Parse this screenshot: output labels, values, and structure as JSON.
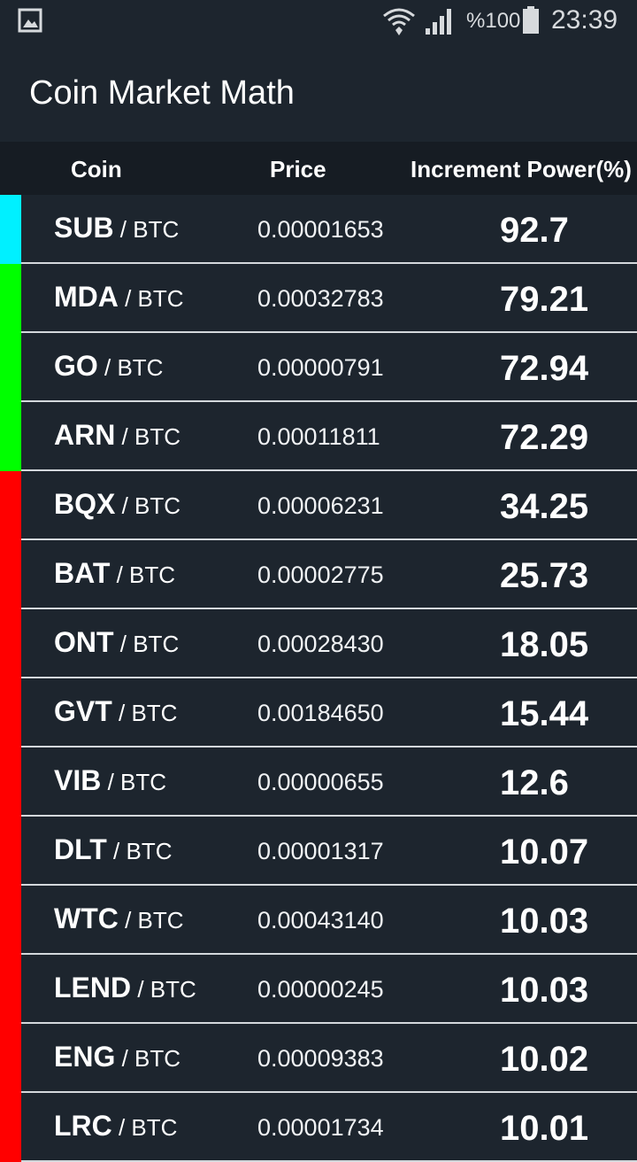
{
  "status_bar": {
    "battery_percent": "%100",
    "time": "23:39",
    "icons": [
      "gallery-icon",
      "wifi-icon",
      "signal-icon",
      "battery-icon"
    ]
  },
  "app_bar": {
    "title": "Coin Market Math"
  },
  "table": {
    "headers": {
      "coin": "Coin",
      "price": "Price",
      "power": "Increment Power(%)"
    },
    "rows": [
      {
        "symbol": "SUB",
        "pair": " / BTC",
        "price": "0.00001653",
        "power": "92.7",
        "color": "#00f0ff"
      },
      {
        "symbol": "MDA",
        "pair": " / BTC",
        "price": "0.00032783",
        "power": "79.21",
        "color": "#00ff00"
      },
      {
        "symbol": "GO",
        "pair": " / BTC",
        "price": "0.00000791",
        "power": "72.94",
        "color": "#00ff00"
      },
      {
        "symbol": "ARN",
        "pair": " / BTC",
        "price": "0.00011811",
        "power": "72.29",
        "color": "#00ff00"
      },
      {
        "symbol": "BQX",
        "pair": " / BTC",
        "price": "0.00006231",
        "power": "34.25",
        "color": "#ff0000"
      },
      {
        "symbol": "BAT",
        "pair": " / BTC",
        "price": "0.00002775",
        "power": "25.73",
        "color": "#ff0000"
      },
      {
        "symbol": "ONT",
        "pair": " / BTC",
        "price": "0.00028430",
        "power": "18.05",
        "color": "#ff0000"
      },
      {
        "symbol": "GVT",
        "pair": " / BTC",
        "price": "0.00184650",
        "power": "15.44",
        "color": "#ff0000"
      },
      {
        "symbol": "VIB",
        "pair": " / BTC",
        "price": "0.00000655",
        "power": "12.6",
        "color": "#ff0000"
      },
      {
        "symbol": "DLT",
        "pair": " / BTC",
        "price": "0.00001317",
        "power": "10.07",
        "color": "#ff0000"
      },
      {
        "symbol": "WTC",
        "pair": " / BTC",
        "price": "0.00043140",
        "power": "10.03",
        "color": "#ff0000"
      },
      {
        "symbol": "LEND",
        "pair": " / BTC",
        "price": "0.00000245",
        "power": "10.03",
        "color": "#ff0000"
      },
      {
        "symbol": "ENG",
        "pair": " / BTC",
        "price": "0.00009383",
        "power": "10.02",
        "color": "#ff0000"
      },
      {
        "symbol": "LRC",
        "pair": " / BTC",
        "price": "0.00001734",
        "power": "10.01",
        "color": "#ff0000"
      }
    ]
  }
}
